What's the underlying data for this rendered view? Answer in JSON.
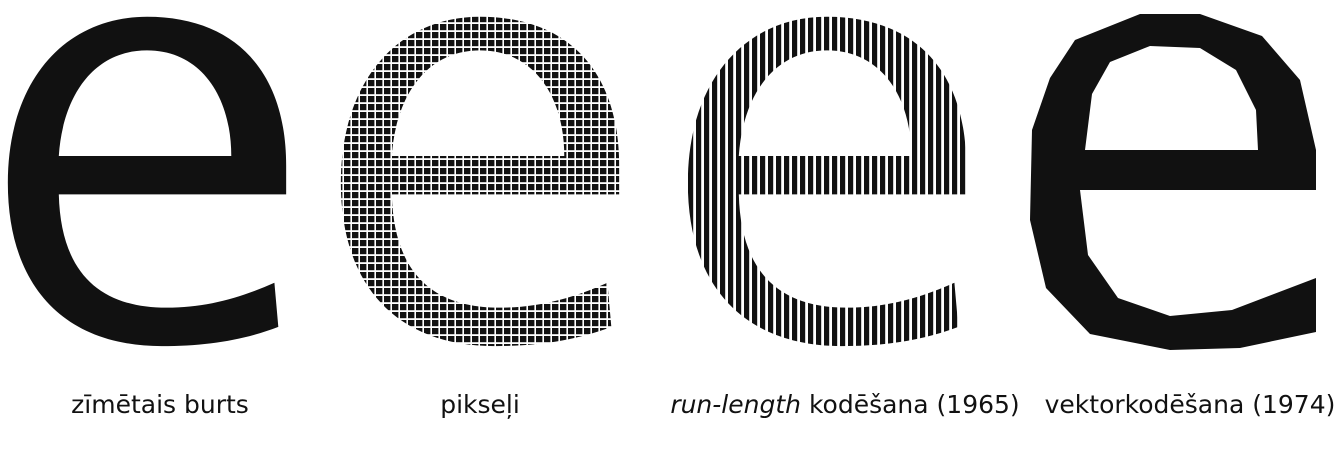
{
  "panels": [
    {
      "id": "drawn",
      "caption": "zīmētais burts"
    },
    {
      "id": "pixels",
      "caption": "pikseļi"
    },
    {
      "id": "rle",
      "caption_em": "run-length",
      "caption": "kodēšana (1965)"
    },
    {
      "id": "vector",
      "caption": "vektorkodēšana (1974)"
    }
  ],
  "colors": {
    "ink": "#111111",
    "background": "#ffffff"
  }
}
